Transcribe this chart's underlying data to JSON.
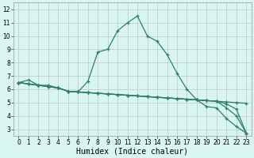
{
  "title": "",
  "xlabel": "Humidex (Indice chaleur)",
  "ylabel": "",
  "bg_color": "#d8f5f0",
  "grid_color": "#c0c8c4",
  "line_color": "#2e7d6e",
  "xlim": [
    -0.5,
    23.5
  ],
  "ylim": [
    2.5,
    12.5
  ],
  "xticks": [
    0,
    1,
    2,
    3,
    4,
    5,
    6,
    7,
    8,
    9,
    10,
    11,
    12,
    13,
    14,
    15,
    16,
    17,
    18,
    19,
    20,
    21,
    22,
    23
  ],
  "yticks": [
    3,
    4,
    5,
    6,
    7,
    8,
    9,
    10,
    11,
    12
  ],
  "series": [
    {
      "x": [
        0,
        1,
        2,
        3,
        4,
        5,
        6,
        7,
        8,
        9,
        10,
        11,
        12,
        13,
        14,
        15,
        16,
        17,
        18,
        19,
        20,
        21,
        22,
        23
      ],
      "y": [
        6.5,
        6.7,
        6.3,
        6.3,
        6.1,
        5.85,
        5.8,
        6.6,
        8.8,
        9.0,
        10.4,
        11.0,
        11.5,
        10.0,
        9.6,
        8.6,
        7.2,
        6.0,
        5.2,
        4.7,
        4.6,
        3.8,
        3.2,
        2.7
      ]
    },
    {
      "x": [
        0,
        1,
        2,
        3,
        4,
        5,
        6,
        7,
        8,
        9,
        10,
        11,
        12,
        13,
        14,
        15,
        16,
        17,
        18,
        19,
        20,
        21,
        22,
        23
      ],
      "y": [
        6.5,
        6.4,
        6.3,
        6.2,
        6.1,
        5.85,
        5.8,
        5.75,
        5.7,
        5.65,
        5.6,
        5.55,
        5.5,
        5.45,
        5.4,
        5.35,
        5.3,
        5.25,
        5.2,
        5.15,
        5.1,
        5.05,
        5.0,
        4.95
      ]
    },
    {
      "x": [
        0,
        1,
        2,
        3,
        4,
        5,
        6,
        7,
        8,
        9,
        10,
        11,
        12,
        13,
        14,
        15,
        16,
        17,
        18,
        19,
        20,
        21,
        22,
        23
      ],
      "y": [
        6.5,
        6.4,
        6.3,
        6.2,
        6.1,
        5.85,
        5.8,
        5.75,
        5.7,
        5.65,
        5.6,
        5.55,
        5.5,
        5.45,
        5.4,
        5.35,
        5.3,
        5.25,
        5.2,
        5.15,
        5.1,
        4.6,
        4.0,
        2.7
      ]
    },
    {
      "x": [
        0,
        1,
        2,
        3,
        4,
        5,
        6,
        7,
        8,
        9,
        10,
        11,
        12,
        13,
        14,
        15,
        16,
        17,
        18,
        19,
        20,
        21,
        22,
        23
      ],
      "y": [
        6.5,
        6.4,
        6.3,
        6.2,
        6.1,
        5.85,
        5.8,
        5.75,
        5.7,
        5.65,
        5.6,
        5.55,
        5.5,
        5.45,
        5.4,
        5.35,
        5.3,
        5.25,
        5.2,
        5.15,
        5.1,
        4.9,
        4.5,
        2.7
      ]
    }
  ],
  "xlabel_fontsize": 7,
  "tick_fontsize": 5.5,
  "marker": "+"
}
